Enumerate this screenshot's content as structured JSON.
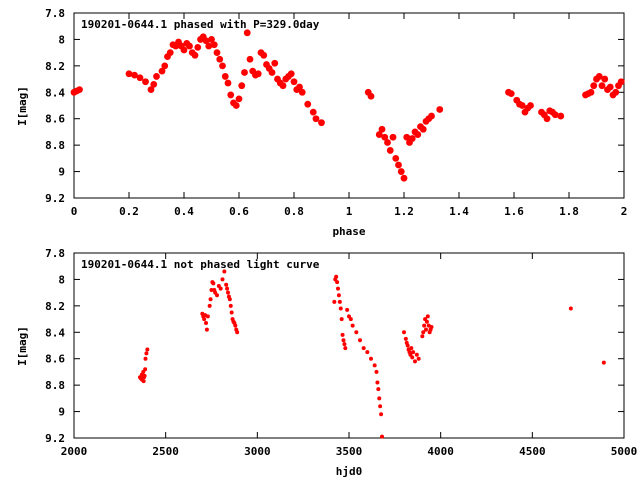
{
  "chart_data": [
    {
      "type": "scatter",
      "title": "190201-0644.1 phased with P=329.0day",
      "xlabel": "phase",
      "ylabel": "I[mag]",
      "xlim": [
        0,
        2
      ],
      "ylim": [
        7.8,
        9.2
      ],
      "y_inverted": true,
      "xticks": [
        "0",
        "0.2",
        "0.4",
        "0.6",
        "0.8",
        "1",
        "1.2",
        "1.4",
        "1.6",
        "1.8",
        "2"
      ],
      "yticks": [
        "7.8",
        "8",
        "8.2",
        "8.4",
        "8.6",
        "8.8",
        "9",
        "9.2"
      ],
      "marker_color": "#ff0000",
      "series": [
        {
          "x": [
            0.0,
            0.01,
            0.02,
            0.2,
            0.22,
            0.24,
            0.26,
            0.28,
            0.29,
            0.3,
            0.32,
            0.33,
            0.34,
            0.35,
            0.36,
            0.37,
            0.38,
            0.39,
            0.4,
            0.41,
            0.42,
            0.43,
            0.44,
            0.45,
            0.46,
            0.47,
            0.48,
            0.49,
            0.5,
            0.51,
            0.52,
            0.53,
            0.54,
            0.55,
            0.56,
            0.57,
            0.58,
            0.59,
            0.6,
            0.61,
            0.62,
            0.63,
            0.64,
            0.65,
            0.66,
            0.67,
            0.68,
            0.69,
            0.7,
            0.71,
            0.72,
            0.73,
            0.74,
            0.75,
            0.76,
            0.77,
            0.78,
            0.79,
            0.8,
            0.81,
            0.82,
            0.83,
            0.85,
            0.87,
            0.88,
            0.9,
            1.07,
            1.08,
            1.11,
            1.12,
            1.13,
            1.14,
            1.15,
            1.16,
            1.17,
            1.18,
            1.19,
            1.2,
            1.21,
            1.22,
            1.23,
            1.24,
            1.25,
            1.26,
            1.27,
            1.28,
            1.29,
            1.3,
            1.33,
            1.58,
            1.59,
            1.61,
            1.62,
            1.63,
            1.64,
            1.65,
            1.66,
            1.7,
            1.71,
            1.72,
            1.73,
            1.74,
            1.75,
            1.77,
            1.86,
            1.87,
            1.88,
            1.89,
            1.9,
            1.91,
            1.92,
            1.93,
            1.94,
            1.95,
            1.96,
            1.97,
            1.98,
            1.99
          ],
          "y": [
            8.4,
            8.39,
            8.38,
            8.26,
            8.27,
            8.29,
            8.32,
            8.38,
            8.34,
            8.28,
            8.24,
            8.2,
            8.13,
            8.1,
            8.04,
            8.05,
            8.02,
            8.05,
            8.08,
            8.03,
            8.05,
            8.1,
            8.12,
            8.06,
            8.0,
            7.98,
            8.01,
            8.05,
            8.0,
            8.04,
            8.1,
            8.15,
            8.2,
            8.28,
            8.33,
            8.42,
            8.48,
            8.5,
            8.45,
            8.35,
            8.25,
            7.95,
            8.15,
            8.24,
            8.27,
            8.26,
            8.1,
            8.12,
            8.19,
            8.22,
            8.25,
            8.18,
            8.3,
            8.33,
            8.35,
            8.3,
            8.28,
            8.26,
            8.32,
            8.38,
            8.36,
            8.4,
            8.49,
            8.55,
            8.6,
            8.63,
            8.4,
            8.43,
            8.72,
            8.68,
            8.74,
            8.78,
            8.84,
            8.74,
            8.9,
            8.95,
            9.0,
            9.05,
            8.74,
            8.78,
            8.75,
            8.7,
            8.72,
            8.66,
            8.68,
            8.62,
            8.6,
            8.58,
            8.53,
            8.4,
            8.41,
            8.46,
            8.49,
            8.5,
            8.55,
            8.52,
            8.5,
            8.55,
            8.57,
            8.6,
            8.54,
            8.55,
            8.57,
            8.58,
            8.42,
            8.41,
            8.4,
            8.35,
            8.3,
            8.28,
            8.35,
            8.3,
            8.38,
            8.36,
            8.42,
            8.4,
            8.35,
            8.32
          ]
        }
      ]
    },
    {
      "type": "scatter",
      "title": "190201-0644.1 not phased light curve",
      "xlabel": "hjd0",
      "ylabel": "I[mag]",
      "xlim": [
        2000,
        5000
      ],
      "ylim": [
        7.8,
        9.2
      ],
      "y_inverted": true,
      "xticks": [
        "2000",
        "2500",
        "3000",
        "3500",
        "4000",
        "4500",
        "5000"
      ],
      "yticks": [
        "7.8",
        "8",
        "8.2",
        "8.4",
        "8.6",
        "8.8",
        "9",
        "9.2"
      ],
      "marker_color": "#ff0000",
      "series": [
        {
          "x": [
            2360,
            2365,
            2370,
            2372,
            2375,
            2378,
            2380,
            2382,
            2385,
            2388,
            2390,
            2395,
            2400,
            2700,
            2705,
            2710,
            2715,
            2720,
            2725,
            2730,
            2740,
            2745,
            2750,
            2755,
            2760,
            2765,
            2770,
            2780,
            2790,
            2800,
            2810,
            2820,
            2830,
            2835,
            2840,
            2845,
            2850,
            2855,
            2860,
            2865,
            2870,
            2875,
            2880,
            2885,
            2890,
            3420,
            3425,
            3430,
            3435,
            3440,
            3445,
            3450,
            3455,
            3460,
            3465,
            3470,
            3475,
            3480,
            3490,
            3500,
            3510,
            3520,
            3540,
            3560,
            3580,
            3600,
            3620,
            3640,
            3650,
            3655,
            3660,
            3665,
            3670,
            3675,
            3680,
            3800,
            3810,
            3815,
            3820,
            3825,
            3830,
            3835,
            3840,
            3845,
            3850,
            3860,
            3870,
            3880,
            3900,
            3905,
            3910,
            3915,
            3920,
            3925,
            3930,
            3935,
            3940,
            3945,
            3950,
            4710,
            4890
          ],
          "y": [
            8.74,
            8.75,
            8.72,
            8.76,
            8.74,
            8.7,
            8.77,
            8.74,
            8.73,
            8.68,
            8.6,
            8.56,
            8.53,
            8.26,
            8.28,
            8.3,
            8.27,
            8.33,
            8.38,
            8.28,
            8.2,
            8.15,
            8.08,
            8.02,
            8.03,
            8.08,
            8.1,
            8.12,
            8.05,
            8.07,
            8.0,
            7.94,
            8.04,
            8.07,
            8.1,
            8.13,
            8.15,
            8.2,
            8.25,
            8.3,
            8.32,
            8.33,
            8.35,
            8.38,
            8.4,
            8.17,
            8.0,
            7.98,
            8.02,
            8.07,
            8.12,
            8.17,
            8.22,
            8.3,
            8.42,
            8.46,
            8.49,
            8.52,
            8.23,
            8.28,
            8.3,
            8.35,
            8.4,
            8.46,
            8.52,
            8.55,
            8.6,
            8.65,
            8.7,
            8.78,
            8.83,
            8.9,
            8.96,
            9.02,
            9.19,
            8.4,
            8.45,
            8.48,
            8.5,
            8.53,
            8.55,
            8.57,
            8.52,
            8.59,
            8.55,
            8.62,
            8.57,
            8.6,
            8.43,
            8.4,
            8.35,
            8.3,
            8.38,
            8.32,
            8.28,
            8.35,
            8.4,
            8.38,
            8.36,
            8.22,
            8.63
          ]
        }
      ]
    }
  ]
}
